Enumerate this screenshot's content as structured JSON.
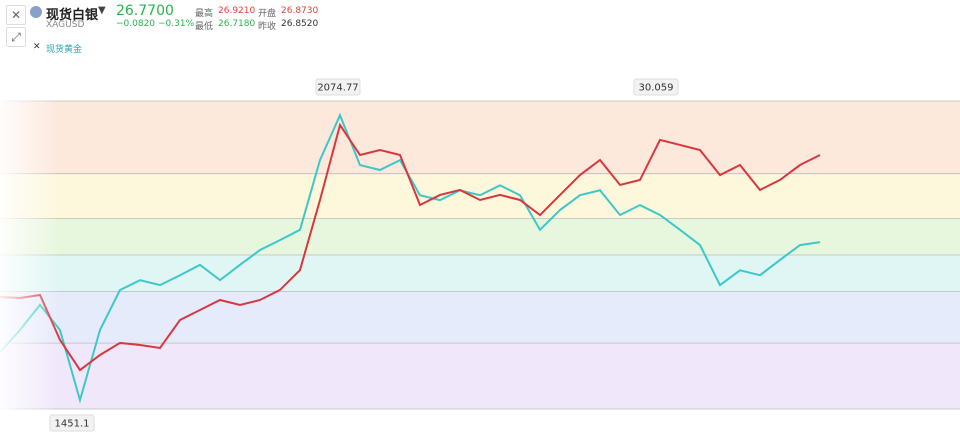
{
  "header": {
    "name": "现货白银",
    "symbol": "XAGUSD",
    "price": "26.7700",
    "change": "−0.0820",
    "change_pct": "−0.31%",
    "stats": [
      {
        "label": "最高",
        "value": "26.9210"
      },
      {
        "label": "开盘",
        "value": "26.8730"
      },
      {
        "label": "最低",
        "value": "26.7180"
      },
      {
        "label": "昨收",
        "value": "26.8520"
      }
    ]
  },
  "chart_data": {
    "type": "line",
    "fib_levels": [
      0,
      0.236,
      0.382,
      0.5,
      0.618,
      0.786,
      1
    ],
    "band_colors": [
      "#fde8dc",
      "#fdf7dc",
      "#e7f7dd",
      "#e0f6f5",
      "#e6ebfb",
      "#f1e7fb"
    ],
    "annotations": [
      "2074.77",
      "30.059",
      "1451.1"
    ],
    "ylim": [
      1451.1,
      2074.77
    ],
    "y2lim": [
      11.64,
      30.059
    ],
    "series": [
      {
        "name": "现货黄金",
        "color": "#3cc8c8",
        "values": [
          1566,
          1611,
          1662,
          1611,
          1469,
          1611,
          1692,
          1712,
          1702,
          1722,
          1743,
          1712,
          1743,
          1773,
          1793,
          1814,
          1955,
          2046,
          1945,
          1935,
          1955,
          1884,
          1874,
          1894,
          1884,
          1904,
          1884,
          1814,
          1854,
          1884,
          1894,
          1844,
          1864,
          1844,
          1814,
          1783,
          1702,
          1732,
          1722,
          1753,
          1783,
          1789
        ]
      },
      {
        "color": "#d9363e",
        "axis": "y2",
        "values": [
          18.34,
          18.28,
          18.46,
          15.77,
          13.97,
          14.87,
          15.59,
          15.47,
          15.29,
          16.96,
          17.56,
          18.16,
          17.86,
          18.16,
          18.76,
          19.95,
          24.14,
          28.62,
          26.83,
          27.13,
          26.83,
          23.84,
          24.44,
          24.74,
          24.14,
          24.44,
          24.14,
          23.24,
          24.44,
          25.63,
          26.53,
          25.04,
          25.34,
          27.73,
          27.43,
          27.13,
          25.63,
          26.23,
          24.74,
          25.34,
          26.23,
          26.83
        ]
      }
    ]
  }
}
